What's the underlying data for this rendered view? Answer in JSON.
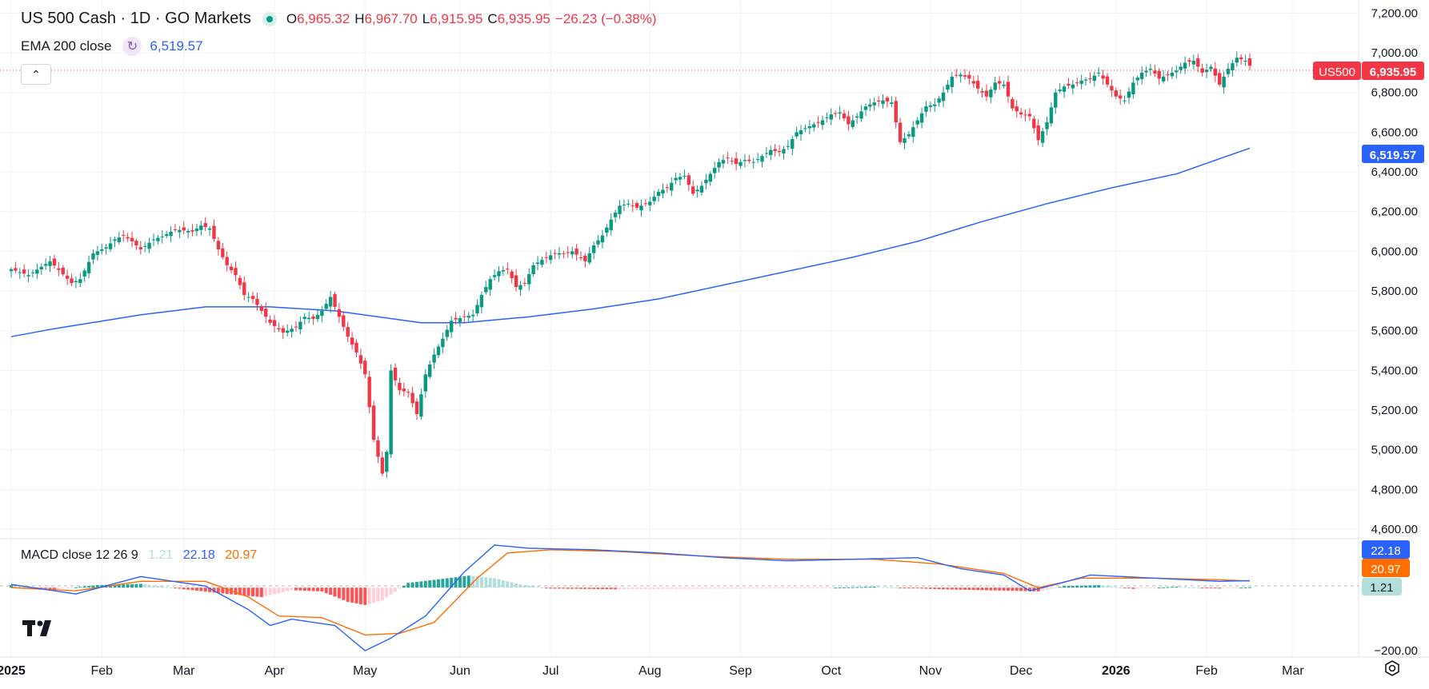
{
  "legend": {
    "symbol": "US 500 Cash · 1D · GO Markets",
    "open_label": "O",
    "open": "6,965.32",
    "high_label": "H",
    "high": "6,967.70",
    "low_label": "L",
    "low": "6,915.95",
    "close_label": "C",
    "close": "6,935.95",
    "change": "−26.23 (−0.38%)"
  },
  "ema_legend": {
    "label": "EMA 200 close",
    "value": "6,519.57"
  },
  "macd_legend": {
    "label": "MACD close 12 26 9",
    "histogram": "1.21",
    "macd": "22.18",
    "signal": "20.97"
  },
  "badges": {
    "symbol_tag": "US500",
    "last_price": "6,935.95",
    "ema_price": "6,519.57",
    "macd": "22.18",
    "signal": "20.97",
    "histogram": "1.21"
  },
  "colors": {
    "up": "#089981",
    "down": "#f23645",
    "ema": "#2962ff",
    "macd": "#2962ff",
    "signal": "#ff6d00",
    "hist_up_strong": "#26a69a",
    "hist_up_weak": "#b2dfdb",
    "hist_down_strong": "#ff5252",
    "hist_down_weak": "#ffcdd2"
  },
  "icons": {
    "collapse": "chevron-up-icon",
    "logo": "tradingview-logo-icon",
    "settings": "chart-settings-icon",
    "live": "market-open-dot-icon",
    "ema_refresh": "refresh-icon"
  },
  "chart_data": {
    "type": "candlestick",
    "title": "US 500 Cash · 1D · GO Markets",
    "price_axis": {
      "ticks": [
        "7,200.00",
        "7,000.00",
        "6,800.00",
        "6,600.00",
        "6,400.00",
        "6,200.00",
        "6,000.00",
        "5,800.00",
        "5,600.00",
        "5,400.00",
        "5,200.00",
        "5,000.00",
        "4,800.00",
        "4,600.00"
      ],
      "range": [
        4560,
        7250
      ]
    },
    "macd_axis": {
      "ticks": [
        "−200.00"
      ],
      "range": [
        -215,
        150
      ]
    },
    "time_axis": [
      "2025",
      "Feb",
      "Mar",
      "Apr",
      "May",
      "Jun",
      "Jul",
      "Aug",
      "Sep",
      "Oct",
      "Nov",
      "Dec",
      "2026",
      "Feb",
      "Mar"
    ],
    "closes": [
      [
        0,
        5910
      ],
      [
        4,
        5880
      ],
      [
        9,
        5950
      ],
      [
        14,
        5840
      ],
      [
        16,
        5860
      ],
      [
        19,
        5990
      ],
      [
        22,
        6020
      ],
      [
        24,
        6060
      ],
      [
        26,
        6080
      ],
      [
        28,
        6050
      ],
      [
        30,
        6010
      ],
      [
        33,
        6060
      ],
      [
        35,
        6075
      ],
      [
        38,
        6110
      ],
      [
        42,
        6100
      ],
      [
        44,
        6130
      ],
      [
        46,
        6115
      ],
      [
        48,
        6010
      ],
      [
        50,
        5930
      ],
      [
        52,
        5880
      ],
      [
        54,
        5780
      ],
      [
        56,
        5760
      ],
      [
        58,
        5700
      ],
      [
        60,
        5640
      ],
      [
        63,
        5590
      ],
      [
        66,
        5620
      ],
      [
        68,
        5670
      ],
      [
        70,
        5660
      ],
      [
        72,
        5700
      ],
      [
        74,
        5770
      ],
      [
        76,
        5670
      ],
      [
        78,
        5570
      ],
      [
        80,
        5490
      ],
      [
        82,
        5380
      ],
      [
        84,
        5050
      ],
      [
        86,
        4880
      ],
      [
        87,
        4990
      ],
      [
        88,
        5400
      ],
      [
        90,
        5300
      ],
      [
        92,
        5290
      ],
      [
        94,
        5180
      ],
      [
        96,
        5380
      ],
      [
        98,
        5480
      ],
      [
        100,
        5560
      ],
      [
        102,
        5650
      ],
      [
        105,
        5670
      ],
      [
        107,
        5680
      ],
      [
        109,
        5780
      ],
      [
        111,
        5860
      ],
      [
        113,
        5900
      ],
      [
        115,
        5910
      ],
      [
        117,
        5820
      ],
      [
        119,
        5840
      ],
      [
        121,
        5930
      ],
      [
        124,
        5970
      ],
      [
        126,
        5990
      ],
      [
        128,
        5990
      ],
      [
        130,
        6000
      ],
      [
        133,
        5950
      ],
      [
        135,
        6030
      ],
      [
        137,
        6080
      ],
      [
        139,
        6160
      ],
      [
        141,
        6230
      ],
      [
        143,
        6240
      ],
      [
        145,
        6220
      ],
      [
        148,
        6250
      ],
      [
        150,
        6300
      ],
      [
        152,
        6320
      ],
      [
        154,
        6370
      ],
      [
        156,
        6380
      ],
      [
        158,
        6290
      ],
      [
        160,
        6330
      ],
      [
        162,
        6390
      ],
      [
        164,
        6450
      ],
      [
        166,
        6470
      ],
      [
        168,
        6440
      ],
      [
        170,
        6460
      ],
      [
        172,
        6450
      ],
      [
        174,
        6480
      ],
      [
        176,
        6510
      ],
      [
        178,
        6500
      ],
      [
        180,
        6530
      ],
      [
        182,
        6600
      ],
      [
        184,
        6620
      ],
      [
        186,
        6640
      ],
      [
        188,
        6660
      ],
      [
        190,
        6690
      ],
      [
        192,
        6700
      ],
      [
        194,
        6640
      ],
      [
        196,
        6680
      ],
      [
        198,
        6730
      ],
      [
        200,
        6750
      ],
      [
        202,
        6760
      ],
      [
        204,
        6750
      ],
      [
        206,
        6550
      ],
      [
        208,
        6590
      ],
      [
        210,
        6660
      ],
      [
        212,
        6730
      ],
      [
        214,
        6740
      ],
      [
        216,
        6800
      ],
      [
        218,
        6880
      ],
      [
        220,
        6890
      ],
      [
        222,
        6870
      ],
      [
        224,
        6820
      ],
      [
        226,
        6780
      ],
      [
        228,
        6850
      ],
      [
        230,
        6840
      ],
      [
        232,
        6720
      ],
      [
        234,
        6690
      ],
      [
        236,
        6680
      ],
      [
        238,
        6560
      ],
      [
        240,
        6650
      ],
      [
        242,
        6800
      ],
      [
        244,
        6830
      ],
      [
        246,
        6840
      ],
      [
        248,
        6860
      ],
      [
        250,
        6870
      ],
      [
        252,
        6900
      ],
      [
        254,
        6840
      ],
      [
        256,
        6780
      ],
      [
        258,
        6760
      ],
      [
        260,
        6850
      ],
      [
        262,
        6900
      ],
      [
        264,
        6920
      ],
      [
        266,
        6870
      ],
      [
        268,
        6890
      ],
      [
        270,
        6910
      ],
      [
        272,
        6950
      ],
      [
        274,
        6960
      ],
      [
        276,
        6900
      ],
      [
        278,
        6930
      ],
      [
        280,
        6840
      ],
      [
        282,
        6920
      ],
      [
        284,
        6975
      ],
      [
        286,
        6960
      ],
      [
        287,
        6935
      ]
    ],
    "ema200": [
      [
        0,
        5570
      ],
      [
        10,
        5610
      ],
      [
        30,
        5680
      ],
      [
        45,
        5720
      ],
      [
        60,
        5720
      ],
      [
        75,
        5700
      ],
      [
        85,
        5670
      ],
      [
        95,
        5640
      ],
      [
        105,
        5640
      ],
      [
        120,
        5670
      ],
      [
        135,
        5710
      ],
      [
        150,
        5760
      ],
      [
        165,
        5830
      ],
      [
        180,
        5900
      ],
      [
        195,
        5970
      ],
      [
        210,
        6050
      ],
      [
        225,
        6150
      ],
      [
        240,
        6240
      ],
      [
        255,
        6320
      ],
      [
        270,
        6390
      ],
      [
        287,
        6519.57
      ]
    ],
    "macd": [
      [
        0,
        10
      ],
      [
        15,
        -20
      ],
      [
        30,
        35
      ],
      [
        45,
        5
      ],
      [
        55,
        -70
      ],
      [
        60,
        -120
      ],
      [
        65,
        -100
      ],
      [
        75,
        -120
      ],
      [
        82,
        -200
      ],
      [
        88,
        -160
      ],
      [
        96,
        -90
      ],
      [
        105,
        50
      ],
      [
        112,
        135
      ],
      [
        120,
        125
      ],
      [
        135,
        120
      ],
      [
        150,
        110
      ],
      [
        165,
        95
      ],
      [
        180,
        85
      ],
      [
        195,
        90
      ],
      [
        210,
        95
      ],
      [
        220,
        60
      ],
      [
        230,
        40
      ],
      [
        236,
        -10
      ],
      [
        242,
        10
      ],
      [
        250,
        40
      ],
      [
        265,
        30
      ],
      [
        280,
        20
      ],
      [
        287,
        22.18
      ]
    ],
    "signal": [
      [
        0,
        0
      ],
      [
        15,
        -10
      ],
      [
        30,
        20
      ],
      [
        45,
        20
      ],
      [
        55,
        -30
      ],
      [
        62,
        -90
      ],
      [
        72,
        -95
      ],
      [
        82,
        -150
      ],
      [
        90,
        -145
      ],
      [
        98,
        -110
      ],
      [
        108,
        30
      ],
      [
        115,
        110
      ],
      [
        125,
        120
      ],
      [
        140,
        115
      ],
      [
        160,
        100
      ],
      [
        180,
        90
      ],
      [
        200,
        90
      ],
      [
        215,
        75
      ],
      [
        230,
        45
      ],
      [
        238,
        0
      ],
      [
        248,
        30
      ],
      [
        265,
        30
      ],
      [
        280,
        25
      ],
      [
        287,
        20.97
      ]
    ],
    "histogram": [
      [
        0,
        8
      ],
      [
        10,
        -6
      ],
      [
        20,
        8
      ],
      [
        30,
        12
      ],
      [
        40,
        -5
      ],
      [
        50,
        -20
      ],
      [
        58,
        -30
      ],
      [
        65,
        -8
      ],
      [
        72,
        -12
      ],
      [
        78,
        -45
      ],
      [
        82,
        -55
      ],
      [
        86,
        -40
      ],
      [
        92,
        15
      ],
      [
        100,
        28
      ],
      [
        106,
        38
      ],
      [
        112,
        30
      ],
      [
        118,
        10
      ],
      [
        125,
        -3
      ],
      [
        140,
        -5
      ],
      [
        155,
        -4
      ],
      [
        170,
        -3
      ],
      [
        185,
        -2
      ],
      [
        200,
        3
      ],
      [
        215,
        -5
      ],
      [
        225,
        -8
      ],
      [
        232,
        -10
      ],
      [
        238,
        -12
      ],
      [
        244,
        5
      ],
      [
        252,
        8
      ],
      [
        260,
        -4
      ],
      [
        270,
        3
      ],
      [
        280,
        -3
      ],
      [
        287,
        1.21
      ]
    ]
  }
}
